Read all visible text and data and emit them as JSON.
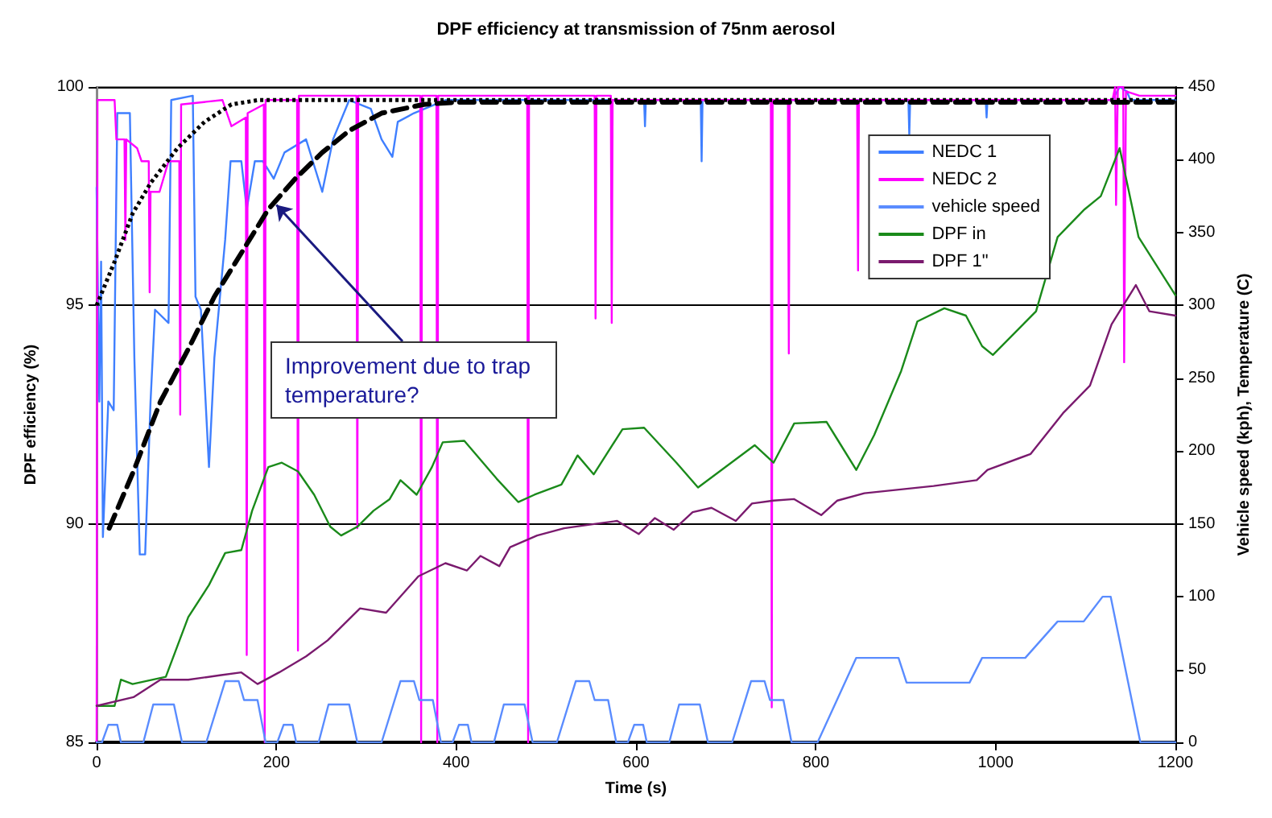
{
  "chart_data": {
    "type": "line",
    "title": "DPF efficiency at transmission of 75nm aerosol",
    "xlabel": "Time (s)",
    "ylabel": "DPF efficiency (%)",
    "y2label": "Vehicle speed (kph), Temperature (C)",
    "xlim": [
      0,
      1200
    ],
    "xticks": [
      0,
      200,
      400,
      600,
      800,
      1000,
      1200
    ],
    "ylim": [
      85,
      100
    ],
    "yticks": [
      85,
      90,
      95,
      100
    ],
    "y2lim": [
      0,
      450
    ],
    "y2ticks": [
      0,
      50,
      100,
      150,
      200,
      250,
      300,
      350,
      400,
      450
    ],
    "grid": "y",
    "legend": "top right",
    "marker": "none",
    "annotations": [
      {
        "text": "Improvement due to trap temperature?",
        "x": 200,
        "y": 97.3
      }
    ],
    "series": [
      {
        "name": "NEDC 1",
        "color": "#3f7fff",
        "x": [
          0,
          3,
          5,
          7,
          13,
          19,
          23,
          37,
          42,
          48,
          54,
          60,
          65,
          80,
          83,
          107,
          110,
          116,
          125,
          131,
          143,
          149,
          161,
          167,
          176,
          185,
          197,
          209,
          233,
          251,
          263,
          281,
          305,
          317,
          329,
          335,
          353,
          388,
          430,
          609,
          610,
          611,
          672,
          673,
          674,
          903,
          904,
          905,
          989,
          990,
          991,
          1130,
          1138,
          1146,
          1150,
          1200
        ],
        "values": [
          97.7,
          92.8,
          96.0,
          89.7,
          92.8,
          92.6,
          99.4,
          99.4,
          93.8,
          89.3,
          89.3,
          92.8,
          94.9,
          94.6,
          99.7,
          99.8,
          95.2,
          94.9,
          91.3,
          93.8,
          96.5,
          98.3,
          98.3,
          97.2,
          98.3,
          98.3,
          97.9,
          98.5,
          98.8,
          97.6,
          98.8,
          99.7,
          99.5,
          98.8,
          98.4,
          99.2,
          99.4,
          99.7,
          99.7,
          99.7,
          99.1,
          99.7,
          99.7,
          98.3,
          99.7,
          99.7,
          98.9,
          99.7,
          99.7,
          99.3,
          99.7,
          99.7,
          100,
          99.9,
          99.7,
          99.7
        ]
      },
      {
        "name": "NEDC 2",
        "color": "#ff00ff",
        "x": [
          0,
          1,
          20,
          22,
          31,
          32,
          33,
          45,
          50,
          58,
          59,
          60,
          70,
          80,
          92,
          93,
          94,
          140,
          150,
          166,
          167,
          168,
          186,
          187,
          188,
          223,
          224,
          225,
          289,
          290,
          291,
          360,
          361,
          362,
          378,
          379,
          380,
          479,
          480,
          481,
          554,
          555,
          556,
          572,
          573,
          574,
          750,
          751,
          752,
          769,
          770,
          771,
          846,
          847,
          848,
          1130,
          1133,
          1134,
          1136,
          1142,
          1143,
          1145,
          1160,
          1200
        ],
        "values": [
          85,
          99.7,
          99.7,
          98.8,
          98.8,
          96.5,
          98.8,
          98.6,
          98.3,
          98.3,
          95.3,
          97.6,
          97.6,
          98.3,
          98.3,
          92.5,
          99.6,
          99.7,
          99.1,
          99.3,
          87.0,
          99.4,
          99.6,
          85,
          99.7,
          99.7,
          87.1,
          99.8,
          99.8,
          89.9,
          99.8,
          99.8,
          85,
          99.8,
          99.8,
          85,
          99.8,
          99.8,
          85,
          99.8,
          99.8,
          94.7,
          99.8,
          99.8,
          94.6,
          99.7,
          99.7,
          85.8,
          99.7,
          99.7,
          93.9,
          99.7,
          99.7,
          95.8,
          99.7,
          99.7,
          100,
          97.3,
          100,
          100,
          93.7,
          99.9,
          99.8,
          99.8
        ]
      },
      {
        "name": "vehicle speed",
        "color": "#5a8cff",
        "axis": "y2",
        "x": [
          0,
          6,
          13,
          23,
          27,
          52,
          63,
          86,
          95,
          122,
          143,
          158,
          164,
          179,
          188,
          195,
          201,
          208,
          218,
          222,
          247,
          258,
          281,
          290,
          317,
          338,
          353,
          359,
          374,
          383,
          390,
          396,
          403,
          413,
          417,
          442,
          453,
          476,
          485,
          512,
          533,
          548,
          554,
          569,
          578,
          585,
          591,
          598,
          608,
          612,
          637,
          648,
          671,
          680,
          707,
          728,
          743,
          749,
          764,
          773,
          780,
          802,
          845,
          892,
          901,
          971,
          985,
          1033,
          1069,
          1098,
          1119,
          1128,
          1161,
          1200
        ],
        "values": [
          0,
          0,
          12,
          12,
          0,
          0,
          26,
          26,
          0,
          0,
          42,
          42,
          29,
          29,
          0,
          0,
          0,
          12,
          12,
          0,
          0,
          26,
          26,
          0,
          0,
          42,
          42,
          29,
          29,
          0,
          0,
          0,
          12,
          12,
          0,
          0,
          26,
          26,
          0,
          0,
          42,
          42,
          29,
          29,
          0,
          0,
          0,
          12,
          12,
          0,
          0,
          26,
          26,
          0,
          0,
          42,
          42,
          29,
          29,
          0,
          0,
          0,
          58,
          58,
          41,
          41,
          58,
          58,
          83,
          83,
          100,
          100,
          0,
          0
        ]
      },
      {
        "name": "DPF in",
        "color": "#1a8a1a",
        "axis": "y2",
        "x": [
          0,
          20,
          27,
          40,
          77,
          102,
          125,
          143,
          161,
          173,
          191,
          206,
          224,
          242,
          260,
          272,
          290,
          308,
          326,
          338,
          356,
          373,
          385,
          409,
          445,
          469,
          487,
          517,
          535,
          553,
          585,
          609,
          627,
          645,
          669,
          693,
          732,
          753,
          776,
          812,
          824,
          845,
          865,
          895,
          913,
          943,
          967,
          985,
          997,
          1045,
          1069,
          1099,
          1117,
          1138,
          1159,
          1200
        ],
        "values": [
          25,
          25,
          43,
          40,
          45,
          86,
          108,
          130,
          132,
          159,
          189,
          192,
          186,
          170,
          148,
          142,
          148,
          159,
          167,
          180,
          170,
          189,
          206,
          207,
          181,
          165,
          170,
          177,
          197,
          184,
          215,
          216,
          204,
          192,
          175,
          186,
          204,
          192,
          219,
          220,
          208,
          187,
          211,
          255,
          289,
          298,
          293,
          272,
          266,
          296,
          347,
          366,
          375,
          408,
          347,
          307
        ]
      },
      {
        "name": "DPF 1\"",
        "color": "#7a1a6e",
        "axis": "y2",
        "x": [
          0,
          41,
          71,
          102,
          137,
          161,
          179,
          203,
          233,
          257,
          293,
          322,
          358,
          388,
          412,
          427,
          448,
          460,
          490,
          520,
          555,
          579,
          603,
          621,
          642,
          663,
          684,
          711,
          729,
          753,
          776,
          806,
          824,
          854,
          931,
          979,
          991,
          1039,
          1075,
          1105,
          1129,
          1156,
          1171,
          1200
        ],
        "values": [
          25,
          31,
          43,
          43,
          46,
          48,
          40,
          48,
          59,
          70,
          92,
          89,
          114,
          123,
          118,
          128,
          121,
          134,
          142,
          147,
          150,
          152,
          143,
          154,
          146,
          158,
          161,
          152,
          164,
          166,
          167,
          156,
          166,
          171,
          176,
          180,
          187,
          198,
          226,
          245,
          287,
          314,
          296,
          293
        ]
      },
      {
        "color": "#000000",
        "line_style": "dotted",
        "x": [
          0,
          20,
          40,
          60,
          90,
          120,
          150,
          180,
          1200
        ],
        "values": [
          95.0,
          96.0,
          97.1,
          97.8,
          98.6,
          99.2,
          99.6,
          99.7,
          99.7
        ]
      },
      {
        "color": "#000000",
        "line_style": "dashed",
        "x": [
          14,
          41,
          71,
          102,
          131,
          161,
          191,
          221,
          251,
          281,
          317,
          364,
          400,
          1200
        ],
        "values": [
          89.9,
          91.2,
          92.8,
          94.0,
          95.2,
          96.2,
          97.2,
          97.9,
          98.5,
          99.0,
          99.4,
          99.6,
          99.65,
          99.65
        ]
      }
    ]
  }
}
